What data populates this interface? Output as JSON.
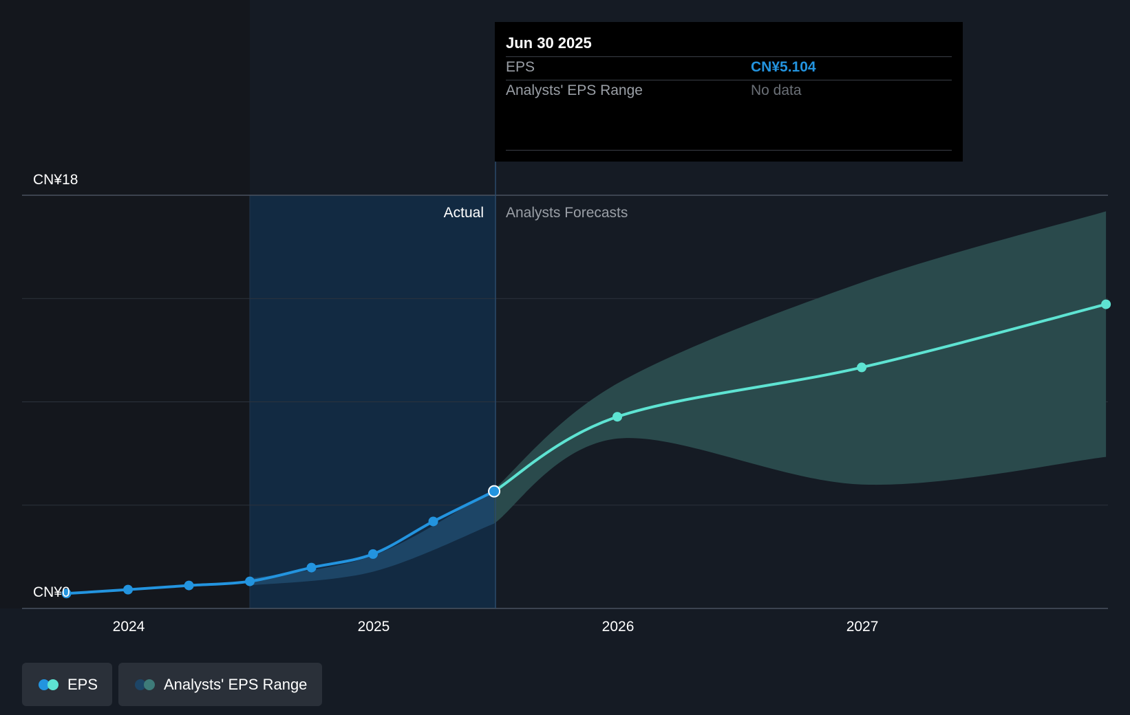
{
  "tooltip": {
    "date": "Jun 30 2025",
    "rows": [
      {
        "label": "EPS",
        "value": "CN¥5.104"
      },
      {
        "label": "Analysts' EPS Range",
        "value": "No data"
      }
    ]
  },
  "sections": {
    "actual": "Actual",
    "forecast": "Analysts Forecasts"
  },
  "legend": {
    "eps": "EPS",
    "range": "Analysts' EPS Range"
  },
  "colors": {
    "background": "#151b24",
    "eps_actual": "#2394df",
    "eps_forecast": "#5ee3d2",
    "range_forecast": "#2a4a4c",
    "range_actual": "#1d4566",
    "highlight": "#122a42",
    "tooltip_value": "#2394df",
    "tooltip_nodata": "#6b7077"
  },
  "chart_data": {
    "type": "line",
    "ylim": [
      0,
      18
    ],
    "y_tick_labels": [
      "CN¥18",
      "CN¥0"
    ],
    "x_tick_labels": [
      "2024",
      "2025",
      "2026",
      "2027"
    ],
    "grid": true,
    "legend_position": "bottom-left",
    "series": [
      {
        "name": "EPS",
        "x": [
          "2023-09-30",
          "2023-12-31",
          "2024-03-31",
          "2024-06-30",
          "2024-09-30",
          "2024-12-31",
          "2025-03-31",
          "2025-06-30"
        ],
        "values": [
          0.65,
          0.82,
          1.0,
          1.18,
          1.78,
          2.37,
          3.79,
          5.104
        ]
      },
      {
        "name": "EPS",
        "x": [
          "2025-06-30",
          "2025-12-31",
          "2026-12-31",
          "2027-12-31"
        ],
        "values": [
          5.104,
          8.35,
          10.5,
          13.25
        ]
      }
    ],
    "range": {
      "name": "Analysts' EPS Range",
      "x": [
        "2024-06-30",
        "2024-12-31",
        "2025-06-30",
        "2025-12-31",
        "2026-12-31",
        "2027-12-31"
      ],
      "high": [
        1.3,
        2.3,
        5.2,
        9.8,
        14.2,
        17.3
      ],
      "low": [
        1.0,
        1.6,
        3.7,
        7.4,
        5.4,
        6.6
      ]
    }
  }
}
